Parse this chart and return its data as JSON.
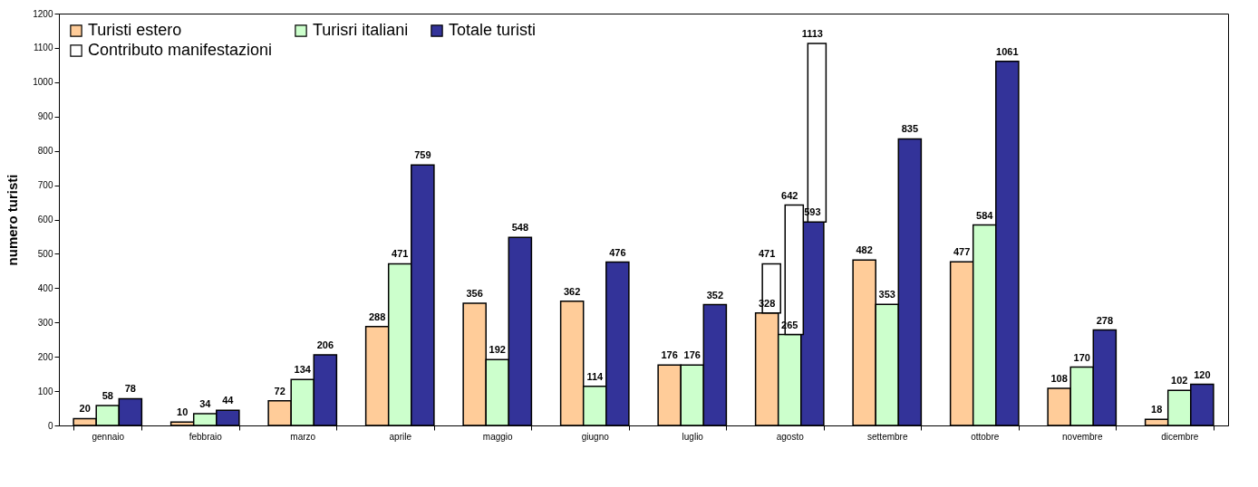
{
  "chart_data": {
    "type": "bar",
    "ylabel": "numero turisti",
    "categories": [
      "gennaio",
      "febbraio",
      "marzo",
      "aprile",
      "maggio",
      "giugno",
      "luglio",
      "agosto",
      "settembre",
      "ottobre",
      "novembre",
      "dicembre"
    ],
    "series": [
      {
        "name": "Turisti estero",
        "color": "#ffcc99",
        "values": [
          20,
          10,
          72,
          288,
          356,
          362,
          176,
          328,
          482,
          477,
          108,
          18
        ]
      },
      {
        "name": "Turisri italiani",
        "color": "#ccffcc",
        "values": [
          58,
          34,
          134,
          471,
          192,
          114,
          176,
          265,
          353,
          584,
          170,
          102
        ]
      },
      {
        "name": "Totale turisti",
        "color": "#333399",
        "values": [
          78,
          44,
          206,
          759,
          548,
          476,
          352,
          593,
          835,
          1061,
          278,
          120
        ]
      },
      {
        "name": "Contributo manifestazioni",
        "color": "#ffffff",
        "values": [
          null,
          null,
          null,
          null,
          null,
          null,
          null,
          143,
          null,
          null,
          null,
          null
        ],
        "base": [
          null,
          null,
          null,
          null,
          null,
          null,
          null,
          328,
          null,
          null,
          null,
          null
        ],
        "value_labels": [
          null,
          null,
          null,
          null,
          null,
          null,
          null,
          "471",
          null,
          null,
          null,
          null
        ]
      },
      {
        "color": "#ffffff",
        "values": [
          null,
          null,
          null,
          null,
          null,
          null,
          null,
          377,
          null,
          null,
          null,
          null
        ],
        "base": [
          null,
          null,
          null,
          null,
          null,
          null,
          null,
          265,
          null,
          null,
          null,
          null
        ],
        "value_labels": [
          null,
          null,
          null,
          null,
          null,
          null,
          null,
          "642",
          null,
          null,
          null,
          null
        ]
      },
      {
        "color": "#ffffff",
        "values": [
          null,
          null,
          null,
          null,
          null,
          null,
          null,
          520,
          null,
          null,
          null,
          null
        ],
        "base": [
          null,
          null,
          null,
          null,
          null,
          null,
          null,
          593,
          null,
          null,
          null,
          null
        ],
        "value_labels": [
          null,
          null,
          null,
          null,
          null,
          null,
          null,
          "1113",
          null,
          null,
          null,
          null
        ]
      }
    ],
    "ylim": [
      0,
      1200
    ],
    "yticks": [
      0,
      100,
      200,
      300,
      400,
      500,
      600,
      700,
      800,
      900,
      1000,
      1100,
      1200
    ],
    "data_labels": true,
    "legend": "top left",
    "grid": false
  }
}
